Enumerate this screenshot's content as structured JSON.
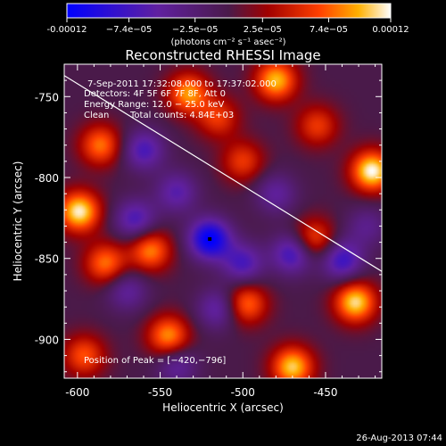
{
  "chart_data": {
    "type": "heatmap",
    "title": "Reconstructed RHESSI Image",
    "xlabel": "Heliocentric X (arcsec)",
    "ylabel": "Heliocentric Y (arcsec)",
    "x_ticks": [
      "-600",
      "-550",
      "-500",
      "-450"
    ],
    "x_tick_values": [
      -600,
      -550,
      -500,
      -450
    ],
    "y_ticks": [
      "-750",
      "-800",
      "-850",
      "-900"
    ],
    "y_tick_values": [
      -750,
      -800,
      -850,
      -900
    ],
    "xlim": [
      -608,
      -416
    ],
    "ylim": [
      -924,
      -730
    ],
    "colorbar": {
      "ticks": [
        "-0.00012",
        "−7.4e−05",
        "−2.5e−05",
        "2.5e−05",
        "7.4e−05",
        "0.00012"
      ],
      "tick_values": [
        -0.00012,
        -7.4e-05,
        -2.5e-05,
        2.5e-05,
        7.4e-05,
        0.00012
      ],
      "range": [
        -0.00012,
        0.00012
      ],
      "units": "(photons cm⁻² s⁻¹ asec⁻²)"
    },
    "annotations": {
      "time": "7-Sep-2011 17:32:08.000 to 17:37:02.000",
      "detectors": "Detectors: 4F 5F 6F 7F 8F, Att 0",
      "energy": "Energy Range: 12.0 − 25.0 keV",
      "method": "Clean",
      "counts": "Total counts: 4.84E+03",
      "peak": "Position of Peak = [−420,−796]"
    },
    "peak": {
      "x": -420,
      "y": -796
    },
    "limb": [
      [
        -608,
        -737
      ],
      [
        -416,
        -858
      ]
    ],
    "sources": [
      {
        "x": -599,
        "y": -821,
        "value": 0.000116
      },
      {
        "x": -422,
        "y": -796,
        "value": 0.00012
      },
      {
        "x": -533,
        "y": -748,
        "value": 9e-05
      },
      {
        "x": -480,
        "y": -740,
        "value": 0.0001
      },
      {
        "x": -586,
        "y": -780,
        "value": 8e-05
      },
      {
        "x": -583,
        "y": -853,
        "value": 8e-05
      },
      {
        "x": -556,
        "y": -845,
        "value": 8.5e-05
      },
      {
        "x": -545,
        "y": -898,
        "value": 9e-05
      },
      {
        "x": -596,
        "y": -910,
        "value": 7e-05
      },
      {
        "x": -470,
        "y": -917,
        "value": 0.000105
      },
      {
        "x": -432,
        "y": -877,
        "value": 0.00011
      },
      {
        "x": -498,
        "y": -878,
        "value": 8e-05
      },
      {
        "x": -457,
        "y": -838,
        "value": 7e-05
      },
      {
        "x": -500,
        "y": -790,
        "value": 6e-05
      },
      {
        "x": -515,
        "y": -763,
        "value": 6e-05
      },
      {
        "x": -455,
        "y": -768,
        "value": 6e-05
      },
      {
        "x": -520,
        "y": -838,
        "value": -0.00012
      },
      {
        "x": -470,
        "y": -847,
        "value": -8e-05
      },
      {
        "x": -500,
        "y": -853,
        "value": -7e-05
      },
      {
        "x": -440,
        "y": -851,
        "value": -8e-05
      },
      {
        "x": -540,
        "y": -809,
        "value": -6e-05
      },
      {
        "x": -565,
        "y": -826,
        "value": -7e-05
      },
      {
        "x": -570,
        "y": -870,
        "value": -5e-05
      },
      {
        "x": -515,
        "y": -881,
        "value": -6e-05
      },
      {
        "x": -560,
        "y": -783,
        "value": -7e-05
      },
      {
        "x": -480,
        "y": -810,
        "value": -5e-05
      },
      {
        "x": -540,
        "y": -916,
        "value": -5e-05
      },
      {
        "x": -425,
        "y": -830,
        "value": -4e-05
      }
    ]
  },
  "footer": {
    "timestamp": "26-Aug-2013 07:44"
  }
}
